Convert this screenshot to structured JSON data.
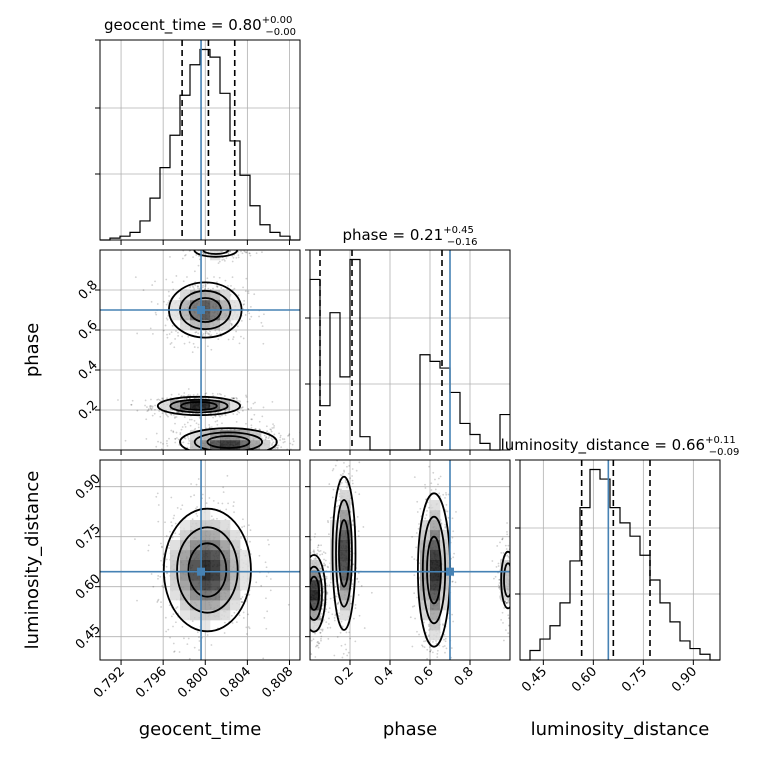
{
  "chart_data": {
    "type": "corner",
    "grid": true,
    "truth_color": "#4682b4",
    "quantile_style": "dashed",
    "parameters": [
      {
        "name": "geocent_time",
        "axis_label": "geocent_time",
        "range": [
          0.79,
          0.809
        ],
        "ticks": [
          0.792,
          0.796,
          0.8,
          0.804,
          0.808
        ],
        "tick_labels": [
          "0.792",
          "0.796",
          "0.800",
          "0.804",
          "0.808"
        ],
        "truth": 0.7996,
        "quantiles": [
          0.7978,
          0.8003,
          0.8028
        ],
        "title_prefix": "geocent_time = ",
        "title_value": "0.80",
        "title_plus": "+0.00",
        "title_minus": "−0.00",
        "hist": {
          "edges_start": 0.79,
          "bin_width": 0.00095,
          "counts": [
            0,
            1,
            2,
            4,
            10,
            22,
            38,
            55,
            76,
            92,
            100,
            96,
            77,
            52,
            34,
            18,
            8,
            4,
            2,
            0
          ]
        }
      },
      {
        "name": "phase",
        "axis_label": "phase",
        "range": [
          0.0,
          1.0
        ],
        "ticks": [
          0.2,
          0.4,
          0.6,
          0.8
        ],
        "tick_labels": [
          "0.2",
          "0.4",
          "0.6",
          "0.8"
        ],
        "truth": 0.7,
        "quantiles": [
          0.05,
          0.21,
          0.66
        ],
        "title_prefix": "phase = ",
        "title_value": "0.21",
        "title_plus": "+0.45",
        "title_minus": "−0.16",
        "hist": {
          "edges_start": 0.0,
          "bin_width": 0.05,
          "counts": [
            77,
            20,
            62,
            33,
            86,
            6,
            0,
            0,
            0,
            0,
            0,
            43,
            40,
            37,
            26,
            12,
            7,
            3,
            0,
            16
          ]
        }
      },
      {
        "name": "luminosity_distance",
        "axis_label": "luminosity_distance",
        "range": [
          0.38,
          0.98
        ],
        "ticks": [
          0.45,
          0.6,
          0.75,
          0.9
        ],
        "tick_labels": [
          "0.45",
          "0.60",
          "0.75",
          "0.90"
        ],
        "truth": 0.645,
        "quantiles": [
          0.565,
          0.66,
          0.77
        ],
        "title_prefix": "luminosity_distance = ",
        "title_value": "0.66",
        "title_plus": "+0.11",
        "title_minus": "−0.09",
        "hist": {
          "edges_start": 0.38,
          "bin_width": 0.03,
          "counts": [
            0,
            5,
            11,
            18,
            30,
            52,
            80,
            100,
            95,
            80,
            72,
            65,
            55,
            42,
            30,
            20,
            10,
            6,
            3,
            0
          ]
        }
      }
    ],
    "density_blobs": [
      {
        "pair": [
          0,
          1
        ],
        "cx": 0.7994,
        "cy": 0.22,
        "sx": 0.0017,
        "sy": 0.02,
        "w": 1.0
      },
      {
        "pair": [
          0,
          1
        ],
        "cx": 0.8022,
        "cy": 0.04,
        "sx": 0.002,
        "sy": 0.03,
        "w": 1.0
      },
      {
        "pair": [
          0,
          1
        ],
        "cx": 0.8,
        "cy": 0.7,
        "sx": 0.0015,
        "sy": 0.06,
        "w": 0.8
      },
      {
        "pair": [
          0,
          1
        ],
        "cx": 0.801,
        "cy": 1.0,
        "sx": 0.0012,
        "sy": 0.02,
        "w": 0.3
      },
      {
        "pair": [
          0,
          2
        ],
        "cx": 0.8002,
        "cy": 0.65,
        "sx": 0.0018,
        "sy": 0.08,
        "w": 1.0
      },
      {
        "pair": [
          1,
          2
        ],
        "cx": 0.17,
        "cy": 0.7,
        "sx": 0.025,
        "sy": 0.1,
        "w": 0.7
      },
      {
        "pair": [
          1,
          2
        ],
        "cx": 0.02,
        "cy": 0.58,
        "sx": 0.025,
        "sy": 0.05,
        "w": 0.8
      },
      {
        "pair": [
          1,
          2
        ],
        "cx": 0.62,
        "cy": 0.65,
        "sx": 0.035,
        "sy": 0.1,
        "w": 0.8
      },
      {
        "pair": [
          1,
          2
        ],
        "cx": 0.99,
        "cy": 0.62,
        "sx": 0.02,
        "sy": 0.05,
        "w": 0.3
      }
    ]
  }
}
